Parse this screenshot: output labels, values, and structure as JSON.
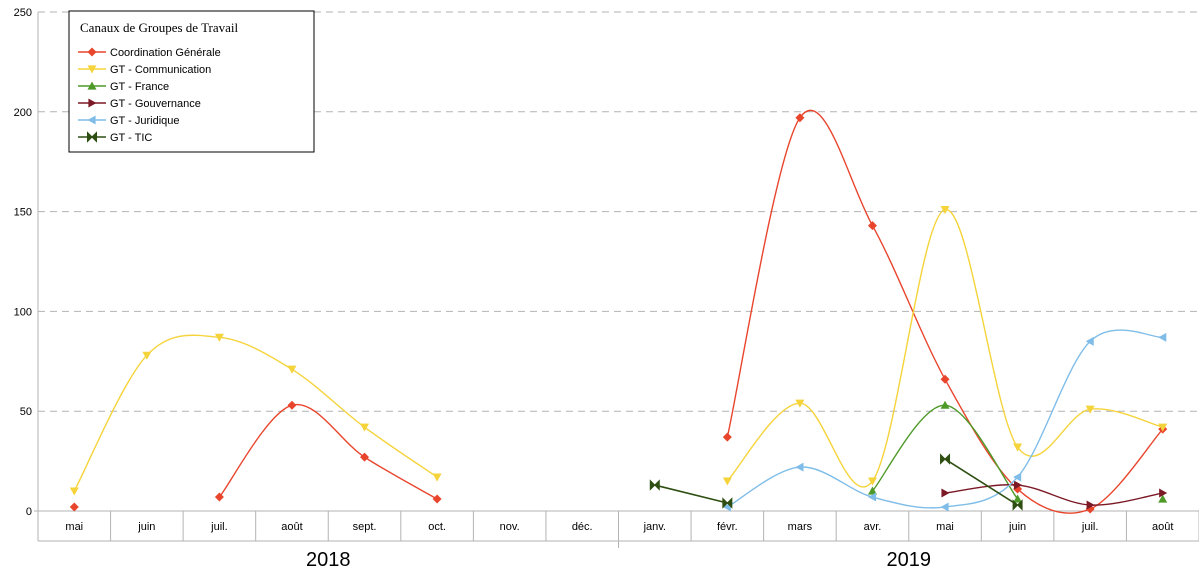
{
  "chart_data": {
    "type": "line",
    "title": "Canaux de Groupes de Travail",
    "ylim": [
      0,
      250
    ],
    "yticks": [
      0,
      50,
      100,
      150,
      200,
      250
    ],
    "grid": true,
    "legend_position": "top-left",
    "categories": [
      "mai",
      "juin",
      "juil.",
      "août",
      "sept.",
      "oct.",
      "nov.",
      "déc.",
      "janv.",
      "févr.",
      "mars",
      "avr.",
      "mai",
      "juin",
      "juil.",
      "août"
    ],
    "year_groups": [
      {
        "label": "2018",
        "from": 0,
        "to": 7
      },
      {
        "label": "2019",
        "from": 8,
        "to": 15
      }
    ],
    "series": [
      {
        "name": "Coordination Générale",
        "color": "#e8452c",
        "marker": "diamond",
        "values": [
          2,
          null,
          7,
          53,
          27,
          6,
          null,
          null,
          null,
          37,
          197,
          143,
          66,
          11,
          1,
          41
        ]
      },
      {
        "name": "GT - Communication",
        "color": "#f5d33a",
        "marker": "triangle-down",
        "values": [
          10,
          78,
          87,
          71,
          42,
          17,
          null,
          null,
          null,
          15,
          54,
          15,
          151,
          32,
          51,
          42
        ]
      },
      {
        "name": "GT - France",
        "color": "#4e9a29",
        "marker": "triangle-up",
        "values": [
          null,
          null,
          null,
          null,
          null,
          null,
          null,
          null,
          null,
          null,
          null,
          10,
          53,
          6,
          null,
          6
        ]
      },
      {
        "name": "GT - Gouvernance",
        "color": "#7b1a26",
        "marker": "triangle-right",
        "values": [
          null,
          null,
          null,
          null,
          null,
          null,
          null,
          null,
          null,
          null,
          null,
          null,
          9,
          13,
          3,
          9
        ]
      },
      {
        "name": "GT - Juridique",
        "color": "#7fbde8",
        "marker": "triangle-left",
        "values": [
          null,
          null,
          null,
          null,
          null,
          null,
          null,
          null,
          null,
          2,
          22,
          7,
          2,
          17,
          85,
          87
        ]
      },
      {
        "name": "GT - TIC",
        "color": "#2e4e12",
        "marker": "bowtie",
        "values": [
          null,
          null,
          null,
          null,
          null,
          null,
          null,
          null,
          13,
          4,
          null,
          null,
          26,
          3,
          null,
          null
        ]
      }
    ]
  }
}
